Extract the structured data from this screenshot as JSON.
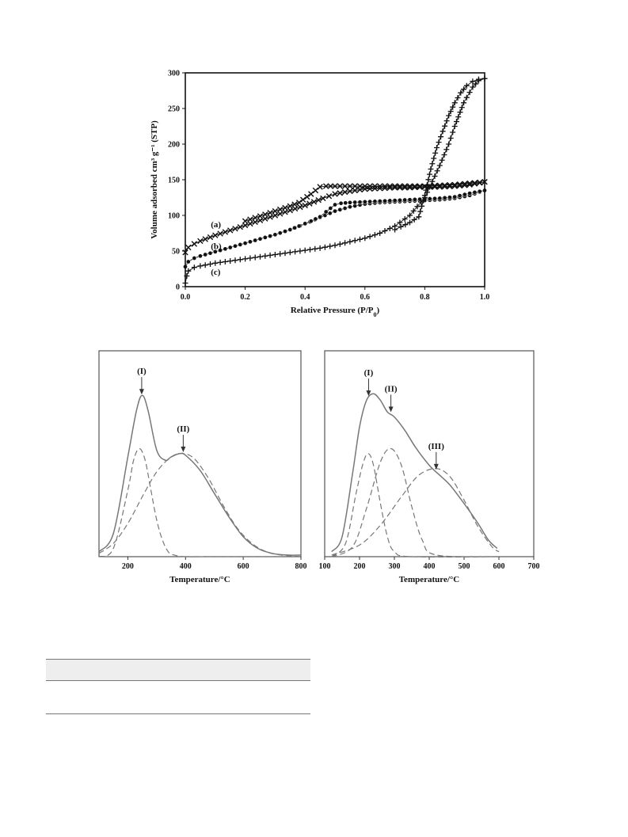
{
  "chart_data": [
    {
      "type": "scatter",
      "xlabel": "Relative Pressure (P/P",
      "xlabel_sub": "0",
      "xlabel_suffix": ")",
      "ylabel": "Volume adsorbed cm³ g⁻¹ (STP)",
      "xlim": [
        0.0,
        1.0
      ],
      "ylim": [
        0,
        300
      ],
      "xticks": [
        "0.0",
        "0.2",
        "0.4",
        "0.6",
        "0.8",
        "1.0"
      ],
      "yticks": [
        "0",
        "50",
        "100",
        "150",
        "200",
        "250",
        "300"
      ],
      "annotations": [
        {
          "text": "(a)",
          "x": 0.08,
          "y": 88
        },
        {
          "text": "(b)",
          "x": 0.08,
          "y": 57
        },
        {
          "text": "(c)",
          "x": 0.08,
          "y": 21
        }
      ],
      "series": [
        {
          "marker": "x",
          "adsorption": [
            [
              0.0,
              48
            ],
            [
              0.01,
              55
            ],
            [
              0.03,
              60
            ],
            [
              0.05,
              64
            ],
            [
              0.1,
              72
            ],
            [
              0.15,
              79
            ],
            [
              0.2,
              86
            ],
            [
              0.25,
              93
            ],
            [
              0.3,
              100
            ],
            [
              0.35,
              107
            ],
            [
              0.4,
              114
            ],
            [
              0.43,
              119
            ],
            [
              0.46,
              124
            ],
            [
              0.5,
              130
            ],
            [
              0.55,
              134
            ],
            [
              0.6,
              137
            ],
            [
              0.65,
              138
            ],
            [
              0.7,
              139
            ],
            [
              0.75,
              139
            ],
            [
              0.8,
              140
            ],
            [
              0.85,
              140
            ],
            [
              0.9,
              141
            ],
            [
              0.95,
              143
            ],
            [
              1.0,
              147
            ]
          ],
          "desorption": [
            [
              1.0,
              147
            ],
            [
              0.95,
              145
            ],
            [
              0.9,
              143
            ],
            [
              0.85,
              142
            ],
            [
              0.8,
              141
            ],
            [
              0.75,
              141
            ],
            [
              0.7,
              141
            ],
            [
              0.65,
              141
            ],
            [
              0.6,
              141
            ],
            [
              0.55,
              141
            ],
            [
              0.5,
              141
            ],
            [
              0.47,
              141
            ],
            [
              0.45,
              140
            ],
            [
              0.42,
              130
            ],
            [
              0.38,
              118
            ],
            [
              0.35,
              113
            ],
            [
              0.3,
              106
            ],
            [
              0.25,
              99
            ],
            [
              0.2,
              92
            ]
          ]
        },
        {
          "marker": "circle",
          "adsorption": [
            [
              0.0,
              28
            ],
            [
              0.01,
              35
            ],
            [
              0.03,
              40
            ],
            [
              0.05,
              43
            ],
            [
              0.1,
              49
            ],
            [
              0.15,
              55
            ],
            [
              0.2,
              61
            ],
            [
              0.25,
              67
            ],
            [
              0.3,
              73
            ],
            [
              0.35,
              80
            ],
            [
              0.4,
              88
            ],
            [
              0.45,
              97
            ],
            [
              0.5,
              106
            ],
            [
              0.55,
              112
            ],
            [
              0.6,
              116
            ],
            [
              0.65,
              118
            ],
            [
              0.7,
              119
            ],
            [
              0.75,
              120
            ],
            [
              0.8,
              121
            ],
            [
              0.85,
              122
            ],
            [
              0.9,
              124
            ],
            [
              0.95,
              128
            ],
            [
              1.0,
              135
            ]
          ],
          "desorption": [
            [
              1.0,
              135
            ],
            [
              0.95,
              131
            ],
            [
              0.9,
              126
            ],
            [
              0.85,
              124
            ],
            [
              0.8,
              123
            ],
            [
              0.75,
              122
            ],
            [
              0.7,
              121
            ],
            [
              0.65,
              120
            ],
            [
              0.6,
              119
            ],
            [
              0.55,
              118
            ],
            [
              0.52,
              117
            ],
            [
              0.5,
              115
            ],
            [
              0.47,
              105
            ],
            [
              0.45,
              98
            ],
            [
              0.42,
              92
            ],
            [
              0.38,
              85
            ],
            [
              0.35,
              80
            ]
          ]
        },
        {
          "marker": "plus",
          "adsorption": [
            [
              0.0,
              5
            ],
            [
              0.005,
              15
            ],
            [
              0.01,
              22
            ],
            [
              0.03,
              27
            ],
            [
              0.05,
              29
            ],
            [
              0.1,
              33
            ],
            [
              0.15,
              36
            ],
            [
              0.2,
              39
            ],
            [
              0.25,
              42
            ],
            [
              0.3,
              45
            ],
            [
              0.35,
              48
            ],
            [
              0.4,
              51
            ],
            [
              0.45,
              54
            ],
            [
              0.5,
              58
            ],
            [
              0.55,
              63
            ],
            [
              0.6,
              68
            ],
            [
              0.65,
              75
            ],
            [
              0.7,
              85
            ],
            [
              0.75,
              100
            ],
            [
              0.8,
              125
            ],
            [
              0.85,
              170
            ],
            [
              0.88,
              200
            ],
            [
              0.9,
              225
            ],
            [
              0.93,
              258
            ],
            [
              0.96,
              280
            ],
            [
              0.98,
              289
            ],
            [
              1.0,
              292
            ]
          ],
          "desorption": [
            [
              1.0,
              292
            ],
            [
              0.98,
              291
            ],
            [
              0.96,
              288
            ],
            [
              0.94,
              282
            ],
            [
              0.92,
              272
            ],
            [
              0.9,
              258
            ],
            [
              0.88,
              240
            ],
            [
              0.86,
              218
            ],
            [
              0.84,
              195
            ],
            [
              0.82,
              165
            ],
            [
              0.8,
              128
            ],
            [
              0.78,
              98
            ],
            [
              0.75,
              90
            ],
            [
              0.72,
              84
            ],
            [
              0.7,
              80
            ]
          ]
        }
      ]
    },
    {
      "type": "line",
      "xlabel": "Temperature/°C",
      "xlim": [
        100,
        800
      ],
      "xticks": [
        "200",
        "400",
        "600",
        "800"
      ],
      "annotations": [
        {
          "text": "(I)",
          "x": 248
        },
        {
          "text": "(II)",
          "x": 392
        }
      ],
      "series": [
        {
          "style": "solid",
          "x": [
            100,
            150,
            200,
            230,
            250,
            270,
            300,
            330,
            350,
            380,
            400,
            450,
            500,
            550,
            600,
            650,
            700,
            750,
            800
          ],
          "y": [
            0.03,
            0.14,
            0.6,
            0.88,
            0.97,
            0.88,
            0.64,
            0.58,
            0.6,
            0.62,
            0.61,
            0.52,
            0.38,
            0.24,
            0.12,
            0.05,
            0.02,
            0.01,
            0.01
          ]
        },
        {
          "style": "dashed",
          "x": [
            100,
            150,
            200,
            220,
            240,
            260,
            280,
            300,
            320,
            340,
            360,
            400,
            500,
            800
          ],
          "y": [
            0.0,
            0.05,
            0.4,
            0.58,
            0.65,
            0.58,
            0.4,
            0.22,
            0.1,
            0.03,
            0.01,
            0.0,
            0.0,
            0.0
          ]
        },
        {
          "style": "dashed",
          "x": [
            100,
            150,
            200,
            250,
            300,
            350,
            390,
            430,
            480,
            530,
            580,
            630,
            680,
            730,
            800
          ],
          "y": [
            0.02,
            0.08,
            0.2,
            0.36,
            0.51,
            0.6,
            0.62,
            0.59,
            0.47,
            0.31,
            0.17,
            0.08,
            0.03,
            0.01,
            0.0
          ]
        }
      ]
    },
    {
      "type": "line",
      "xlabel": "Temperature/°C",
      "xlim": [
        100,
        700
      ],
      "xticks": [
        "100",
        "200",
        "300",
        "400",
        "500",
        "600",
        "700"
      ],
      "annotations": [
        {
          "text": "(I)",
          "x": 226
        },
        {
          "text": "(II)",
          "x": 290
        },
        {
          "text": "(III)",
          "x": 420
        }
      ],
      "series": [
        {
          "style": "solid",
          "x": [
            120,
            150,
            180,
            200,
            220,
            240,
            260,
            280,
            300,
            330,
            360,
            400,
            430,
            460,
            500,
            540,
            570,
            595
          ],
          "y": [
            0.03,
            0.12,
            0.5,
            0.78,
            0.94,
            0.98,
            0.94,
            0.87,
            0.84,
            0.76,
            0.66,
            0.55,
            0.49,
            0.43,
            0.32,
            0.2,
            0.1,
            0.05
          ]
        },
        {
          "style": "dashed",
          "x": [
            120,
            160,
            190,
            210,
            225,
            240,
            260,
            280,
            300,
            350,
            600
          ],
          "y": [
            0.0,
            0.08,
            0.38,
            0.56,
            0.62,
            0.55,
            0.32,
            0.12,
            0.03,
            0.0,
            0.0
          ]
        },
        {
          "style": "dashed",
          "x": [
            120,
            180,
            220,
            260,
            290,
            320,
            350,
            380,
            420,
            600
          ],
          "y": [
            0.0,
            0.06,
            0.29,
            0.57,
            0.65,
            0.55,
            0.3,
            0.1,
            0.01,
            0.0
          ]
        },
        {
          "style": "dashed",
          "x": [
            120,
            200,
            260,
            320,
            370,
            420,
            460,
            500,
            540,
            580,
            600
          ],
          "y": [
            0.01,
            0.07,
            0.19,
            0.36,
            0.49,
            0.53,
            0.48,
            0.34,
            0.18,
            0.06,
            0.03
          ]
        }
      ]
    }
  ]
}
